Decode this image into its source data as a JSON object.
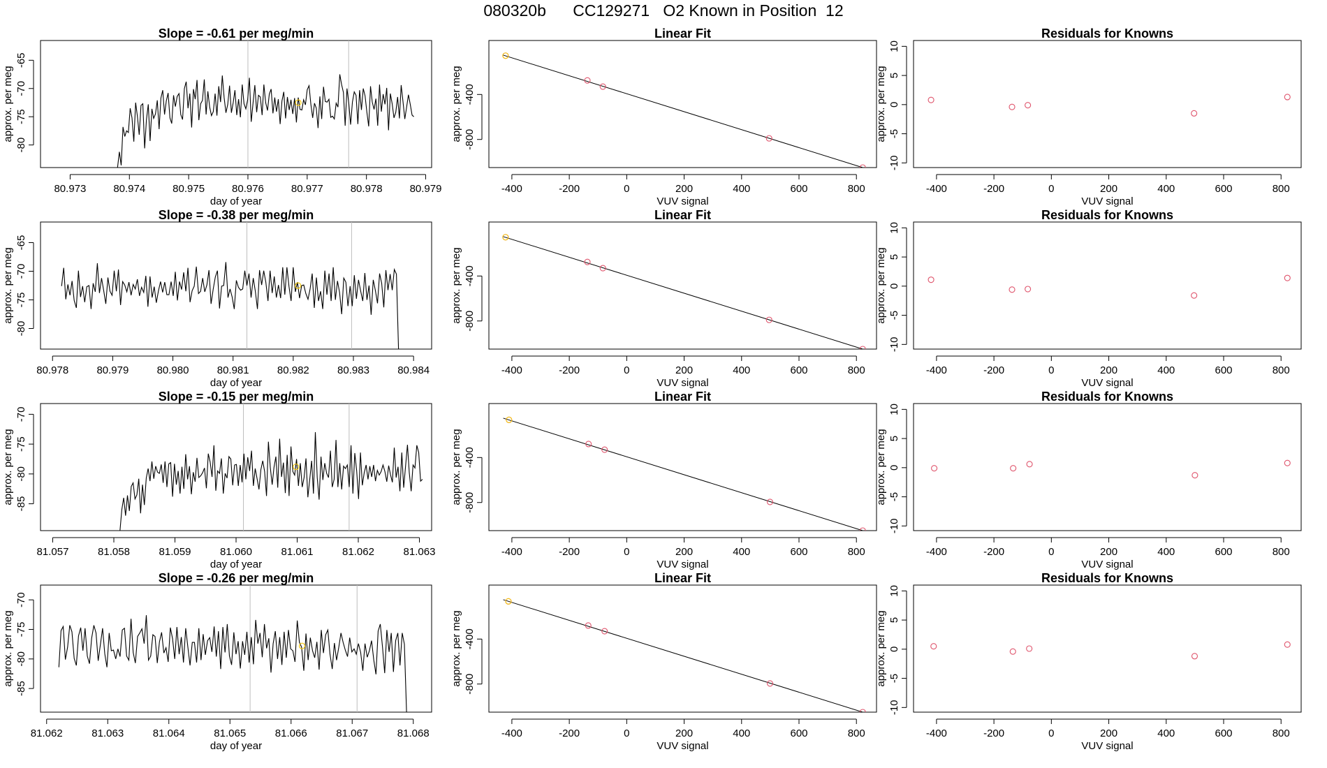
{
  "title": "080320b      CC129271   O2 Known in Position  12",
  "colors": {
    "line": "#000000",
    "points": "#DF536B",
    "highlight": "#F5C710",
    "vline": "#BEBEBE"
  },
  "chart_data": [
    {
      "type": "line",
      "row": 1,
      "col": 1,
      "title": "Slope =  -0.61  per meg/min",
      "xlabel": "day of year",
      "ylabel": "approx. per meg",
      "xlim": [
        80.9725,
        80.9791
      ],
      "ylim": [
        -84,
        -61.5
      ],
      "xticks": [
        80.973,
        80.974,
        80.975,
        80.976,
        80.977,
        80.978,
        80.979
      ],
      "xdec": 3,
      "yticks": [
        -80,
        -75,
        -70,
        -65
      ],
      "x_start": 80.9738,
      "x_end": 80.9788,
      "vlines": [
        80.976,
        80.9777
      ],
      "highlight_point": [
        80.97685,
        -72.5
      ],
      "values": [
        -84,
        -81.2,
        -83.6,
        -76.8,
        -78.5,
        -77.5,
        -77.8,
        -73.5,
        -75.2,
        -79.4,
        -72.5,
        -75,
        -78.2,
        -73,
        -72.7,
        -80.6,
        -75.5,
        -72.8,
        -79.3,
        -73.6,
        -75.3,
        -74.5,
        -72.1,
        -77.2,
        -71.7,
        -70.3,
        -74.6,
        -72.2,
        -70.8,
        -75.2,
        -76.2,
        -71.2,
        -73.2,
        -71.4,
        -70.9,
        -74.6,
        -75.5,
        -70,
        -68.8,
        -73.5,
        -70.9,
        -76.9,
        -70.1,
        -71.9,
        -68.5,
        -75.6,
        -72.7,
        -72.1,
        -68.4,
        -74.6,
        -70.5,
        -73.3,
        -74.8,
        -74.1,
        -70.9,
        -74.8,
        -69.6,
        -72.4,
        -67.7,
        -71.6,
        -74.3,
        -72.8,
        -69.5,
        -74.3,
        -72.5,
        -70.3,
        -74.7,
        -71.9,
        -75.1,
        -69.3,
        -72.7,
        -73.6,
        -72,
        -68.1,
        -75.9,
        -72.6,
        -69.4,
        -74.2,
        -71.2,
        -71.5,
        -74.7,
        -69.3,
        -72.5,
        -73.9,
        -71,
        -70.1,
        -74.4,
        -71.6,
        -74.1,
        -71.9,
        -76.3,
        -72.2,
        -70.6,
        -75.3,
        -71.5,
        -73.8,
        -72,
        -74.5,
        -71.7,
        -76,
        -71.6,
        -73.7,
        -73.8,
        -72,
        -72.9,
        -70.2,
        -69.5,
        -72.8,
        -75.2,
        -72.6,
        -73.5,
        -77,
        -71.4,
        -75.4,
        -69.7,
        -72.3,
        -72.4,
        -71.9,
        -75.1,
        -74.9,
        -75.4,
        -72.6,
        -73.3,
        -67.5,
        -69.3,
        -70.7,
        -76.6,
        -70,
        -72.6,
        -76.4,
        -72.4,
        -70.6,
        -71.2,
        -76.3,
        -70.3,
        -73.8,
        -70,
        -71.3,
        -74.2,
        -76.7,
        -69.6,
        -72.4,
        -73.7,
        -71.8,
        -76.6,
        -69.3,
        -74.1,
        -71,
        -72.8,
        -69.9,
        -77.4,
        -70.9,
        -72.7,
        -75.2,
        -74.2,
        -71.5,
        -75.3,
        -69.4,
        -72.3,
        -75.4,
        -73.3,
        -71.1,
        -72.8,
        -74.7,
        -75
      ]
    },
    {
      "type": "scatter",
      "row": 1,
      "col": 2,
      "title": "Linear Fit",
      "xlabel": "VUV signal",
      "ylabel": "approx. per meg",
      "xlim": [
        -480,
        870
      ],
      "ylim": [
        -1050,
        80
      ],
      "xticks": [
        -400,
        -200,
        0,
        200,
        400,
        600,
        800
      ],
      "yticks": [
        -800,
        -400
      ],
      "x": [
        -422,
        -137,
        -83,
        496,
        822
      ],
      "y": [
        -55,
        -275,
        -330,
        -790,
        -1050
      ],
      "fit_line": [
        [
          -430,
          -50
        ],
        [
          822,
          -1050
        ]
      ],
      "highlight_index": 0
    },
    {
      "type": "scatter",
      "row": 1,
      "col": 3,
      "title": "Residuals for Knowns",
      "xlabel": "VUV signal",
      "ylabel": "approx. per meg",
      "xlim": [
        -480,
        870
      ],
      "ylim": [
        -10.8,
        11
      ],
      "xticks": [
        -400,
        -200,
        0,
        200,
        400,
        600,
        800
      ],
      "yticks": [
        -10,
        -5,
        0,
        5,
        10
      ],
      "x": [
        -419,
        -137,
        -82,
        497,
        822
      ],
      "y": [
        0.8,
        -0.4,
        -0.1,
        -1.5,
        1.3
      ]
    },
    {
      "type": "line",
      "row": 2,
      "col": 1,
      "title": "Slope =  -0.38  per meg/min",
      "xlabel": "day of year",
      "ylabel": "approx. per meg",
      "xlim": [
        80.9778,
        80.9843
      ],
      "ylim": [
        -83.6,
        -61.4
      ],
      "xticks": [
        80.978,
        80.979,
        80.98,
        80.981,
        80.982,
        80.983,
        80.984
      ],
      "xdec": 3,
      "yticks": [
        -80,
        -75,
        -70,
        -65
      ],
      "x_start": 80.97815,
      "x_end": 80.98375,
      "vlines": [
        80.98123,
        80.98297
      ],
      "highlight_point": [
        80.98208,
        -72.5
      ],
      "values": [
        -72.6,
        -69.4,
        -74.9,
        -72.3,
        -74.2,
        -71.7,
        -75.1,
        -76.4,
        -69.9,
        -74.5,
        -72.6,
        -75.4,
        -72.7,
        -72.5,
        -76.6,
        -72.1,
        -73.6,
        -68.6,
        -73.8,
        -71.2,
        -73.4,
        -75.7,
        -71.1,
        -73.5,
        -74.2,
        -69.9,
        -73.5,
        -69.7,
        -75.9,
        -71.8,
        -72.4,
        -73.6,
        -71.9,
        -74.2,
        -72.3,
        -73.1,
        -71.4,
        -74.3,
        -72.8,
        -73.7,
        -70.8,
        -76.2,
        -70.9,
        -74.6,
        -72.7,
        -75.5,
        -73.4,
        -71.8,
        -73.7,
        -71.9,
        -74.1,
        -74.1,
        -71.8,
        -74.3,
        -70.1,
        -75.1,
        -71.8,
        -73.2,
        -70.2,
        -73.5,
        -69.4,
        -75.4,
        -73.4,
        -72.6,
        -69.2,
        -73.9,
        -73.5,
        -71.2,
        -73.6,
        -72.4,
        -69.8,
        -75.7,
        -73.1,
        -71,
        -69.9,
        -76.5,
        -72.6,
        -72.5,
        -68.4,
        -74.6,
        -73.1,
        -74.5,
        -76.6,
        -71.6,
        -72.8,
        -73.3,
        -73.1,
        -69.9,
        -72.5,
        -70.4,
        -74.6,
        -71.2,
        -73.5,
        -76.6,
        -69.8,
        -72.4,
        -69.9,
        -71.9,
        -75.2,
        -69.9,
        -73.8,
        -70.9,
        -74.6,
        -72.4,
        -74.7,
        -69.3,
        -74.1,
        -69.3,
        -72.7,
        -75.2,
        -69.3,
        -73.6,
        -71.9,
        -74.7,
        -72.5,
        -72.4,
        -73.9,
        -74.9,
        -73.1,
        -70.4,
        -76.4,
        -71.1,
        -75.2,
        -73.5,
        -76.6,
        -69.9,
        -74.1,
        -70.4,
        -75.2,
        -69.3,
        -75,
        -71.7,
        -73.7,
        -77.5,
        -71.2,
        -71.9,
        -76.1,
        -72.6,
        -76.1,
        -70.7,
        -74.8,
        -71.5,
        -73.4,
        -75.2,
        -70.3,
        -75,
        -72.5,
        -77.6,
        -71.5,
        -73.3,
        -75.6,
        -70.4,
        -72.1,
        -76.3,
        -69.8,
        -73.3,
        -70.5,
        -73.3,
        -69.7,
        -70.5,
        -83.6
      ]
    },
    {
      "type": "scatter",
      "row": 2,
      "col": 2,
      "title": "Linear Fit",
      "xlabel": "VUV signal",
      "ylabel": "approx. per meg",
      "xlim": [
        -480,
        870
      ],
      "ylim": [
        -1050,
        80
      ],
      "xticks": [
        -400,
        -200,
        0,
        200,
        400,
        600,
        800
      ],
      "yticks": [
        -800,
        -400
      ],
      "x": [
        -422,
        -137,
        -83,
        496,
        822
      ],
      "y": [
        -55,
        -275,
        -330,
        -790,
        -1050
      ],
      "fit_line": [
        [
          -430,
          -50
        ],
        [
          822,
          -1050
        ]
      ],
      "highlight_index": 0
    },
    {
      "type": "scatter",
      "row": 2,
      "col": 3,
      "title": "Residuals for Knowns",
      "xlabel": "VUV signal",
      "ylabel": "approx. per meg",
      "xlim": [
        -480,
        870
      ],
      "ylim": [
        -10.8,
        11
      ],
      "xticks": [
        -400,
        -200,
        0,
        200,
        400,
        600,
        800
      ],
      "yticks": [
        -10,
        -5,
        0,
        5,
        10
      ],
      "x": [
        -419,
        -137,
        -82,
        497,
        822
      ],
      "y": [
        1.1,
        -0.6,
        -0.5,
        -1.6,
        1.4
      ]
    },
    {
      "type": "line",
      "row": 3,
      "col": 1,
      "title": "Slope =  -0.15  per meg/min",
      "xlabel": "day of year",
      "ylabel": "approx. per meg",
      "xlim": [
        81.0568,
        81.0632
      ],
      "ylim": [
        -89.5,
        -68.2
      ],
      "xticks": [
        81.057,
        81.058,
        81.059,
        81.06,
        81.061,
        81.062,
        81.063
      ],
      "xdec": 3,
      "yticks": [
        -85,
        -80,
        -75,
        -70
      ],
      "x_start": 81.0581,
      "x_end": 81.06305,
      "vlines": [
        81.06012,
        81.06185
      ],
      "highlight_point": [
        81.06098,
        -78.8
      ],
      "values": [
        -89.5,
        -86,
        -84,
        -87,
        -83.6,
        -86.2,
        -82.1,
        -81.5,
        -84.2,
        -83.5,
        -80.8,
        -86.6,
        -81.8,
        -85.2,
        -80.7,
        -79.1,
        -81.2,
        -77.9,
        -80.8,
        -78.7,
        -79.7,
        -79.9,
        -78.4,
        -81.5,
        -77.9,
        -82.2,
        -78.3,
        -78.1,
        -83.8,
        -78.3,
        -81.8,
        -79.5,
        -83.3,
        -78.8,
        -82.5,
        -76.7,
        -80.9,
        -78.7,
        -83.4,
        -79.7,
        -81.3,
        -77.3,
        -80.6,
        -80.3,
        -79.8,
        -79,
        -82.4,
        -76.6,
        -78,
        -80.5,
        -75.2,
        -82.8,
        -79.5,
        -79.9,
        -77.4,
        -83.3,
        -79.9,
        -80.7,
        -77.1,
        -77.5,
        -81.9,
        -78.5,
        -78.4,
        -82,
        -78.5,
        -81.4,
        -76.6,
        -80.9,
        -77.2,
        -79.5,
        -76.1,
        -82,
        -79.1,
        -80.8,
        -82.6,
        -79.3,
        -77.8,
        -79.6,
        -83.7,
        -74.6,
        -78.9,
        -81.8,
        -78.9,
        -77.1,
        -82.3,
        -74.1,
        -80.5,
        -78.1,
        -83.2,
        -76.8,
        -83.7,
        -75.4,
        -79.6,
        -80.2,
        -77.5,
        -82,
        -78.2,
        -82.2,
        -80.6,
        -77.4,
        -83.9,
        -80.9,
        -77.8,
        -83.3,
        -73,
        -80.6,
        -84.3,
        -77.1,
        -81,
        -78.2,
        -79.9,
        -80.6,
        -76.1,
        -82.2,
        -80.9,
        -74.3,
        -82.2,
        -78.2,
        -82.6,
        -78.7,
        -79.1,
        -78.5,
        -82.2,
        -75.2,
        -83.3,
        -76.5,
        -79.5,
        -84.2,
        -76.4,
        -81.9,
        -79.8,
        -78.5,
        -80.9,
        -78.7,
        -80.5,
        -78.5,
        -81.2,
        -79.4,
        -80.2,
        -79.6,
        -78.5,
        -79.6,
        -81.3,
        -78.6,
        -80.1,
        -81.4,
        -75.6,
        -80.6,
        -78.8,
        -82.9,
        -76.4,
        -82.3,
        -78.7,
        -75.1,
        -79.8,
        -82.9,
        -78.5,
        -79,
        -75.2,
        -76.4,
        -81.2,
        -80.9
      ]
    },
    {
      "type": "scatter",
      "row": 3,
      "col": 2,
      "title": "Linear Fit",
      "xlabel": "VUV signal",
      "ylabel": "approx. per meg",
      "xlim": [
        -480,
        870
      ],
      "ylim": [
        -1050,
        80
      ],
      "xticks": [
        -400,
        -200,
        0,
        200,
        400,
        600,
        800
      ],
      "yticks": [
        -800,
        -400
      ],
      "x": [
        -410,
        -133,
        -77,
        499,
        822
      ],
      "y": [
        -65,
        -280,
        -330,
        -795,
        -1050
      ],
      "fit_line": [
        [
          -430,
          -50
        ],
        [
          822,
          -1050
        ]
      ],
      "highlight_index": 0
    },
    {
      "type": "scatter",
      "row": 3,
      "col": 3,
      "title": "Residuals for Knowns",
      "xlabel": "VUV signal",
      "ylabel": "approx. per meg",
      "xlim": [
        -480,
        870
      ],
      "ylim": [
        -10.8,
        11
      ],
      "xticks": [
        -400,
        -200,
        0,
        200,
        400,
        600,
        800
      ],
      "yticks": [
        -10,
        -5,
        0,
        5,
        10
      ],
      "x": [
        -408,
        -133,
        -76,
        500,
        822
      ],
      "y": [
        -0.1,
        -0.1,
        0.6,
        -1.3,
        0.8
      ]
    },
    {
      "type": "line",
      "row": 4,
      "col": 1,
      "title": "Slope =  -0.26  per meg/min",
      "xlabel": "day of year",
      "ylabel": "approx. per meg",
      "xlim": [
        81.0619,
        81.0683
      ],
      "ylim": [
        -89,
        -67.5
      ],
      "xticks": [
        81.062,
        81.063,
        81.064,
        81.065,
        81.066,
        81.067,
        81.068
      ],
      "xdec": 3,
      "yticks": [
        -85,
        -80,
        -75,
        -70
      ],
      "x_start": 81.0622,
      "x_end": 81.06789,
      "vlines": [
        81.06533,
        81.06708
      ],
      "highlight_point": [
        81.06618,
        -77.8
      ],
      "values": [
        -81.4,
        -75.2,
        -74.5,
        -80.1,
        -78,
        -74.3,
        -75.4,
        -79.9,
        -81.1,
        -76.1,
        -74.7,
        -78.6,
        -74.8,
        -79.5,
        -80.8,
        -76.5,
        -74.3,
        -75.6,
        -80.3,
        -77.6,
        -74.8,
        -79.1,
        -81.4,
        -75.6,
        -78.6,
        -78.5,
        -80,
        -78.3,
        -79.6,
        -75.1,
        -74.8,
        -79.5,
        -80.2,
        -73.2,
        -78.9,
        -80.7,
        -76.2,
        -75.6,
        -74.9,
        -77.4,
        -72.6,
        -80.2,
        -79.5,
        -75.9,
        -76.2,
        -80.7,
        -77.1,
        -75.5,
        -79,
        -78.1,
        -80.5,
        -74.7,
        -76.6,
        -80,
        -74.6,
        -79.2,
        -76.3,
        -80.6,
        -74.8,
        -78,
        -81.1,
        -77.2,
        -77.2,
        -80.6,
        -74.8,
        -80.2,
        -75.8,
        -79.3,
        -76.9,
        -76.4,
        -78.8,
        -74.5,
        -79.6,
        -75.3,
        -81.7,
        -74.6,
        -78.9,
        -74.1,
        -79.5,
        -81,
        -75.5,
        -79.2,
        -77,
        -81.6,
        -77,
        -79.3,
        -75.4,
        -80.6,
        -76.3,
        -80.9,
        -73.4,
        -77.4,
        -75.6,
        -79.7,
        -74.1,
        -78.2,
        -76.5,
        -82.3,
        -77.4,
        -75.3,
        -80,
        -76.3,
        -81,
        -75.4,
        -79.8,
        -75.1,
        -78.3,
        -78.6,
        -80.5,
        -73.5,
        -77.2,
        -78,
        -82,
        -75.7,
        -80.2,
        -76.4,
        -78.6,
        -79.8,
        -77.1,
        -81.8,
        -75.1,
        -79,
        -75.9,
        -75.1,
        -79.2,
        -81.7,
        -77.3,
        -80.2,
        -78,
        -75.6,
        -77.2,
        -78.5,
        -79.6,
        -76.4,
        -78.8,
        -78.3,
        -79.2,
        -77.4,
        -78.9,
        -82,
        -77.4,
        -79.7,
        -78.6,
        -76.9,
        -80.2,
        -82.6,
        -75.3,
        -74.1,
        -78,
        -82.4,
        -75.1,
        -78.8,
        -75.6,
        -82.2,
        -76.9,
        -75.6,
        -81.1,
        -75.6,
        -77.5,
        -89
      ]
    },
    {
      "type": "scatter",
      "row": 4,
      "col": 2,
      "title": "Linear Fit",
      "xlabel": "VUV signal",
      "ylabel": "approx. per meg",
      "xlim": [
        -480,
        870
      ],
      "ylim": [
        -1050,
        80
      ],
      "xticks": [
        -400,
        -200,
        0,
        200,
        400,
        600,
        800
      ],
      "yticks": [
        -800,
        -400
      ],
      "x": [
        -412,
        -134,
        -77,
        499,
        822
      ],
      "y": [
        -65,
        -280,
        -330,
        -795,
        -1050
      ],
      "fit_line": [
        [
          -430,
          -50
        ],
        [
          822,
          -1050
        ]
      ],
      "highlight_index": 0
    },
    {
      "type": "scatter",
      "row": 4,
      "col": 3,
      "title": "Residuals for Knowns",
      "xlabel": "VUV signal",
      "ylabel": "approx. per meg",
      "xlim": [
        -480,
        870
      ],
      "ylim": [
        -10.8,
        11
      ],
      "xticks": [
        -400,
        -200,
        0,
        200,
        400,
        600,
        800
      ],
      "yticks": [
        -10,
        -5,
        0,
        5,
        10
      ],
      "x": [
        -410,
        -134,
        -77,
        499,
        822
      ],
      "y": [
        0.5,
        -0.4,
        0.1,
        -1.2,
        0.8
      ]
    }
  ]
}
